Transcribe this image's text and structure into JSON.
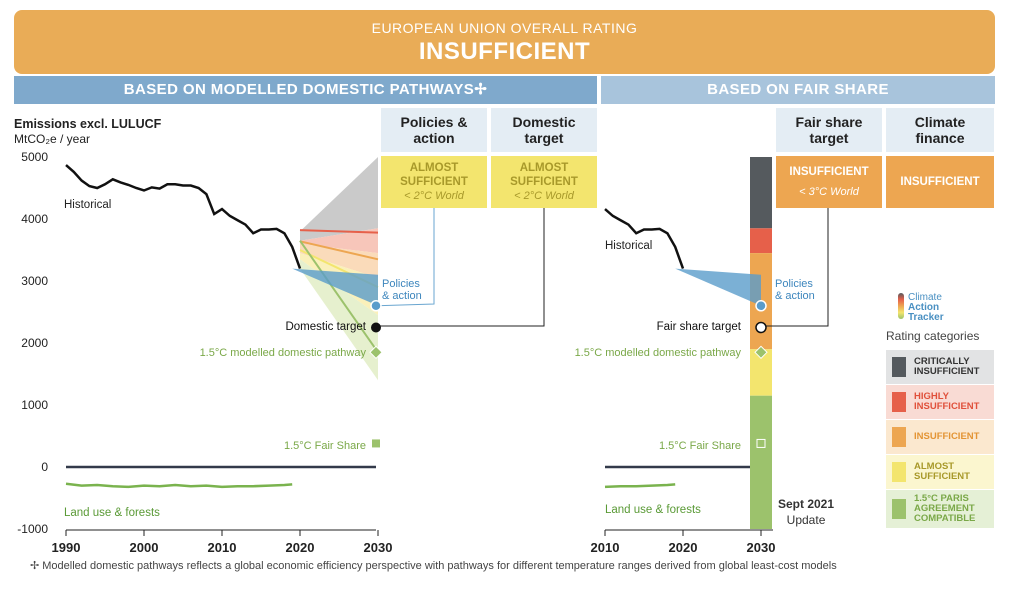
{
  "banner": {
    "subtitle": "EUROPEAN UNION OVERALL RATING",
    "rating": "INSUFFICIENT"
  },
  "sections": {
    "left": "BASED ON MODELLED DOMESTIC PATHWAYS✢",
    "right": "BASED ON FAIR SHARE"
  },
  "columns": [
    {
      "title": "Policies & action",
      "rating": "ALMOST SUFFICIENT",
      "world": "< 2°C World"
    },
    {
      "title": "Domestic target",
      "rating": "ALMOST SUFFICIENT",
      "world": "< 2°C World"
    },
    {
      "title": "Fair share target",
      "rating": "INSUFFICIENT",
      "world": "< 3°C World"
    },
    {
      "title": "Climate finance",
      "rating": "INSUFFICIENT",
      "world": ""
    }
  ],
  "colors": {
    "section_left": "#7fa9cc",
    "section_right": "#a8c4dc",
    "almost_sufficient": "#f3e56e",
    "insufficient": "#eda651",
    "critically_insufficient": "#555a5e",
    "highly_insufficient": "#e6604a",
    "paris_compatible": "#9cc26c"
  },
  "chart_data": {
    "type": "line",
    "ylabel": "Emissions excl. LULUCF",
    "yunit": "MtCO₂e / year",
    "ylim": [
      -1000,
      5000
    ],
    "yticks": [
      5000,
      4000,
      3000,
      2000,
      1000,
      0,
      -1000
    ],
    "left_xticks": [
      1990,
      2000,
      2010,
      2020,
      2030
    ],
    "right_xticks": [
      2010,
      2020,
      2030
    ],
    "historical": {
      "label": "Historical",
      "x": [
        1990,
        1991,
        1992,
        1993,
        1994,
        1995,
        1996,
        1997,
        1998,
        1999,
        2000,
        2001,
        2002,
        2003,
        2004,
        2005,
        2006,
        2007,
        2008,
        2009,
        2010,
        2011,
        2012,
        2013,
        2014,
        2015,
        2016,
        2017,
        2018,
        2019,
        2020
      ],
      "y": [
        4870,
        4760,
        4620,
        4530,
        4500,
        4560,
        4640,
        4590,
        4550,
        4500,
        4460,
        4510,
        4490,
        4560,
        4560,
        4540,
        4540,
        4500,
        4400,
        4080,
        4160,
        4050,
        3980,
        3910,
        3770,
        3830,
        3830,
        3840,
        3770,
        3550,
        3200
      ]
    },
    "land_use": {
      "label": "Land use & forests",
      "x": [
        1990,
        1992,
        1994,
        1996,
        1998,
        2000,
        2002,
        2004,
        2006,
        2008,
        2010,
        2012,
        2014,
        2016,
        2018,
        2019
      ],
      "y": [
        -270,
        -300,
        -290,
        -310,
        -320,
        -300,
        -310,
        -290,
        -310,
        -300,
        -320,
        -310,
        -310,
        -300,
        -290,
        -280
      ]
    },
    "rating_bands_2030": [
      {
        "name": "Critically insufficient",
        "min": 3850,
        "max": 5000
      },
      {
        "name": "Highly insufficient",
        "min": 3450,
        "max": 3850
      },
      {
        "name": "Insufficient",
        "min": 1900,
        "max": 3450
      },
      {
        "name": "Almost sufficient",
        "min": 1150,
        "max": 1900
      },
      {
        "name": "1.5°C Paris Agreement compatible",
        "min": -1000,
        "max": 1150
      }
    ],
    "policies_and_action": {
      "label": "Policies & action",
      "x2030": 2600,
      "range2030": [
        2600,
        3100
      ]
    },
    "domestic_target": {
      "label": "Domestic target",
      "x2030": 2250
    },
    "fair_share_target": {
      "label": "Fair share target",
      "x2030": 2250
    },
    "modelled_pathway": {
      "label": "1.5°C modelled domestic pathway",
      "x2030": 1850
    },
    "fair_share_1p5": {
      "label": "1.5°C Fair Share",
      "x2030": 380
    }
  },
  "legend": {
    "logo": [
      "Climate",
      "Action",
      "Tracker"
    ],
    "title": "Rating categories",
    "items": [
      {
        "label": "CRITICALLY INSUFFICIENT",
        "color": "#555a5e",
        "bg": "#e2e3e4",
        "text": "#333"
      },
      {
        "label": "HIGHLY INSUFFICIENT",
        "color": "#e6604a",
        "bg": "#f9dbd4",
        "text": "#e0503a"
      },
      {
        "label": "INSUFFICIENT",
        "color": "#eda651",
        "bg": "#fbe8cf",
        "text": "#e39434"
      },
      {
        "label": "ALMOST SUFFICIENT",
        "color": "#f3e56e",
        "bg": "#fbf6cf",
        "text": "#a8992a"
      },
      {
        "label": "1.5°C PARIS AGREEMENT COMPATIBLE",
        "color": "#9cc26c",
        "bg": "#e5f0d6",
        "text": "#7aa848"
      }
    ]
  },
  "update": {
    "line1": "Sept 2021",
    "line2": "Update"
  },
  "footnote": "✢  Modelled domestic pathways reflects a global economic efficiency perspective with pathways for different temperature ranges derived from global least-cost models"
}
